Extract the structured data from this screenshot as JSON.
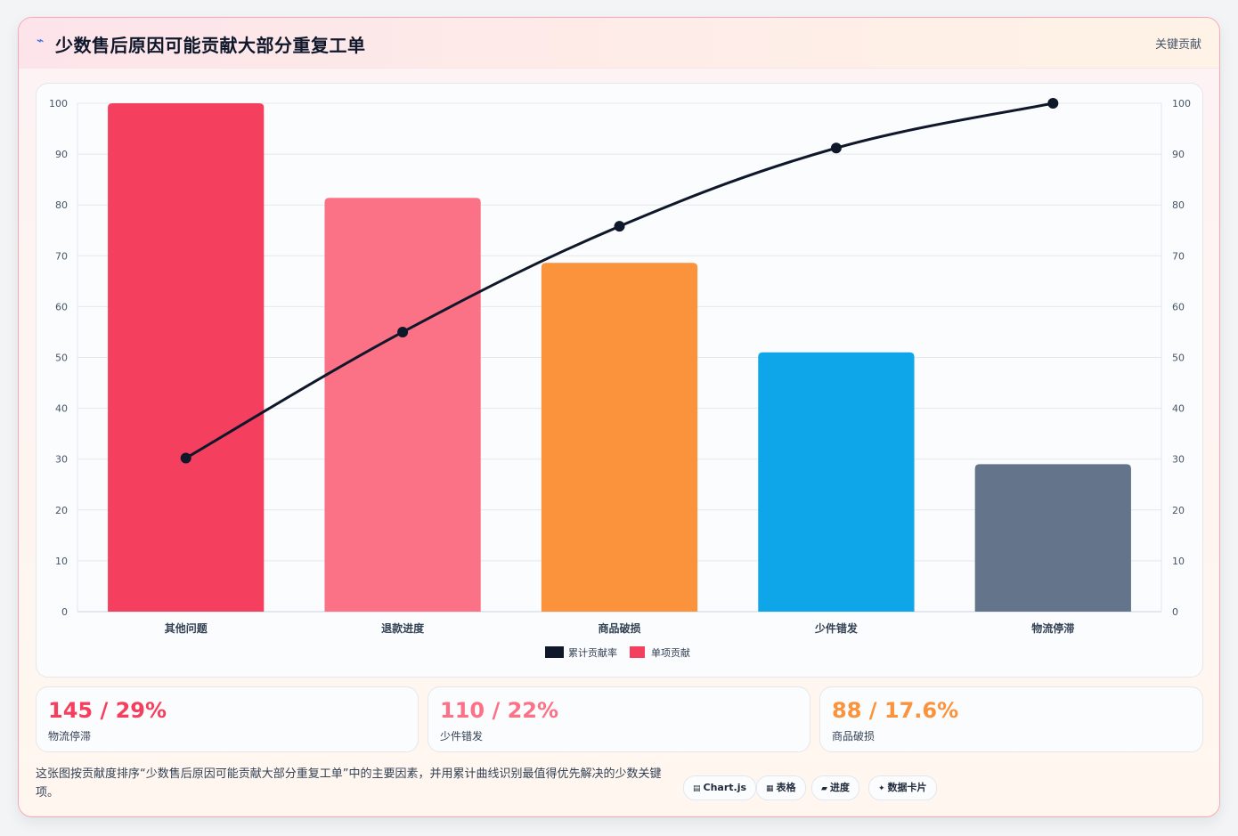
{
  "header": {
    "icon": "⌁",
    "title": "少数售后原因可能贡献大部分重复工单",
    "badge": "关键贡献"
  },
  "colors": {
    "bars": [
      "#f43f5e",
      "#fb7185",
      "#fb923c",
      "#0ea5e9",
      "#64748b"
    ],
    "line": "#0f172a",
    "stat_values": [
      "#f43f5e",
      "#fb7185",
      "#fb923c"
    ]
  },
  "chart_data": {
    "type": "bar",
    "categories": [
      "其他问题",
      "退款进度",
      "商品破损",
      "少件错发",
      "物流停滞"
    ],
    "series": [
      {
        "name": "单项贡献",
        "type": "bar",
        "axis": "left",
        "values": [
          100,
          81.4,
          68.6,
          51,
          29
        ]
      },
      {
        "name": "累计贡献率",
        "type": "line",
        "axis": "right",
        "values": [
          30.2,
          55,
          75.8,
          91.2,
          100
        ]
      }
    ],
    "ylim": [
      0,
      100
    ],
    "y2lim": [
      0,
      100
    ],
    "yticks": [
      0,
      10,
      20,
      30,
      40,
      50,
      60,
      70,
      80,
      90,
      100
    ],
    "grid": true,
    "legend_position": "bottom"
  },
  "stats": [
    {
      "value": "145 / 29%",
      "label": "物流停滞"
    },
    {
      "value": "110 / 22%",
      "label": "少件错发"
    },
    {
      "value": "88 / 17.6%",
      "label": "商品破损"
    }
  ],
  "footnote": "这张图按贡献度排序“少数售后原因可能贡献大部分重复工单”中的主要因素，并用累计曲线识别最值得优先解决的少数关键项。",
  "chips": [
    {
      "icon": "▤",
      "label": "Chart.js"
    },
    {
      "icon": "▦",
      "label": "表格"
    },
    {
      "icon": "▰",
      "label": "进度"
    },
    {
      "icon": "✦",
      "label": "数据卡片"
    }
  ]
}
